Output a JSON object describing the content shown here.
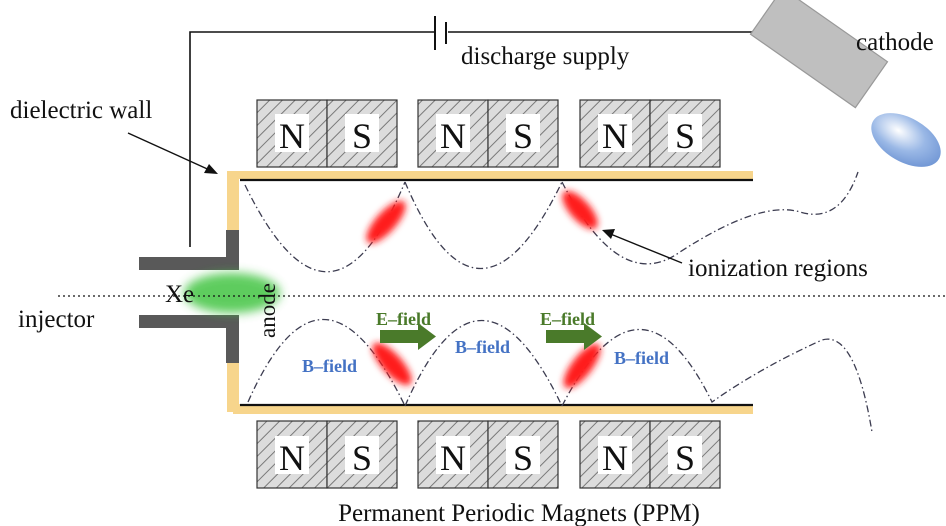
{
  "labels": {
    "discharge_supply": "discharge supply",
    "cathode": "cathode",
    "dielectric_wall": "dielectric wall",
    "ionization_regions": "ionization regions",
    "injector": "injector",
    "xe": "Xe",
    "anode": "anode",
    "caption": "Permanent Periodic Magnets (PPM)"
  },
  "magnets": {
    "top": [
      "N",
      "S",
      "N",
      "S",
      "N",
      "S"
    ],
    "bottom": [
      "N",
      "S",
      "N",
      "S",
      "N",
      "S"
    ]
  },
  "fields": {
    "e_field_1": "E–field",
    "e_field_2": "E–field",
    "b_field_1": "B–field",
    "b_field_2": "B–field",
    "b_field_3": "B–field"
  },
  "colors": {
    "dielectric": "#f7d58c",
    "magnet_fill": "#d9d9d9",
    "anode_gray": "#595959",
    "cathode_gray": "#bfbfbf",
    "e_field_arrow": "#4a7a2a",
    "b_field_text": "#4472c4",
    "ionization": "#ff1f1f",
    "xe_glow": "#43c443",
    "plume": "#8fb0e0"
  }
}
